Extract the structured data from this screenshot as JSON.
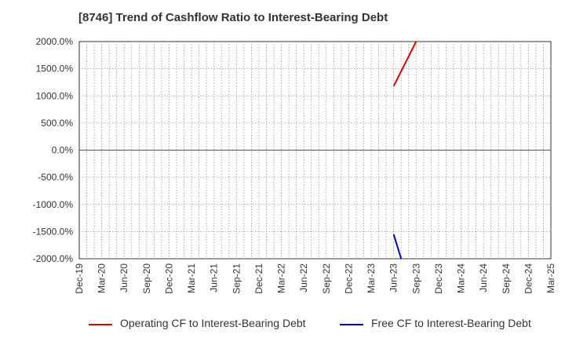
{
  "chart_data": {
    "type": "line",
    "title": "[8746]  Trend of Cashflow Ratio to Interest-Bearing Debt",
    "xlabel": "",
    "ylabel": "",
    "ylim": [
      -2000,
      2000
    ],
    "ytick_values": [
      2000,
      1500,
      1000,
      500,
      0,
      -500,
      -1000,
      -1500,
      -2000
    ],
    "ytick_labels": [
      "2000.0%",
      "1500.0%",
      "1000.0%",
      "500.0%",
      "0.0%",
      "-500.0%",
      "-1000.0%",
      "-1500.0%",
      "-2000.0%"
    ],
    "x_start": "Dec-19",
    "x_months": 63,
    "xtick_labels": [
      "Dec-19",
      "Mar-20",
      "Jun-20",
      "Sep-20",
      "Dec-20",
      "Mar-21",
      "Jun-21",
      "Sep-21",
      "Dec-21",
      "Mar-22",
      "Jun-22",
      "Sep-22",
      "Dec-22",
      "Mar-23",
      "Jun-23",
      "Sep-23",
      "Dec-23",
      "Mar-24",
      "Jun-24",
      "Sep-24",
      "Dec-24",
      "Mar-25"
    ],
    "grid": true,
    "legend_position": "bottom",
    "series": [
      {
        "name": "Operating CF to Interest-Bearing Debt",
        "color": "#dd0000",
        "points": [
          {
            "x": "Jun-23",
            "y": 1180
          },
          {
            "x": "Sep-23",
            "y": 2000
          }
        ]
      },
      {
        "name": "Free CF to Interest-Bearing Debt",
        "color": "#0000cc",
        "points": [
          {
            "x": "Jun-23",
            "y": -1550
          },
          {
            "x": "Jul-23",
            "y": -2000
          }
        ]
      }
    ]
  }
}
